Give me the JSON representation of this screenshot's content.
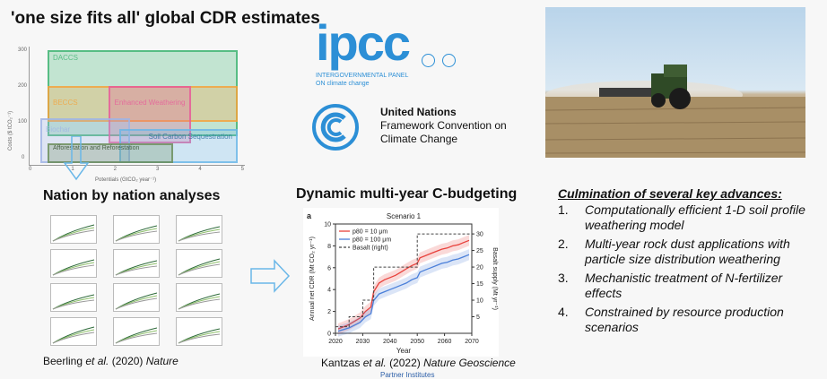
{
  "left": {
    "title": "'one size fits all' global CDR estimates",
    "ylabel": "Costs ($ tCO₂⁻¹)",
    "xlabel": "Potentials (GtCO₂ year⁻¹)",
    "yticks": [
      "300",
      "200",
      "100",
      "0"
    ],
    "xticks": [
      "0",
      "1",
      "2",
      "3",
      "4",
      "5"
    ],
    "boxes": {
      "daccs": "DACCS",
      "beccs": "BECCS",
      "enhanced_weathering": "Enhanced Weathering",
      "biochar": "Biochar",
      "afforestation": "Afforestation and Reforestation",
      "soil_carbon": "Soil Carbon Sequestration"
    },
    "colors": {
      "daccs": "#3cb371",
      "beccs": "#f5a33b",
      "enhanced_weathering": "#e85a9a",
      "biochar": "#9fb4e6",
      "afforestation": "#6b8e5a",
      "soil_carbon": "#6ab7e8"
    },
    "subtitle": "Nation by nation analyses",
    "citation_authors": "Beerling",
    "citation_etal": "et al.",
    "citation_rest": "(2020)",
    "citation_journal": "Nature"
  },
  "logos": {
    "ipcc_word": "ipcc",
    "ipcc_tagline": "INTERGOVERNMENTAL PANEL ON climate change",
    "un_line1": "United Nations",
    "un_line2": "Framework Convention on",
    "un_line3": "Climate Change"
  },
  "middle": {
    "subtitle": "Dynamic multi-year C-budgeting",
    "panel_letter": "a",
    "citation_authors": "Kantzas",
    "citation_etal": "et al.",
    "citation_rest": "(2022)",
    "citation_journal": "Nature Geoscience",
    "footer": "Partner Institutes"
  },
  "chart_data": {
    "type": "line",
    "title": "Scenario 1",
    "xlabel": "Year",
    "ylabel": "Annual net CDR (Mt CO₂ yr⁻¹)",
    "ylabel_right": "Basalt supply (Mt yr⁻¹)",
    "xlim": [
      2020,
      2070
    ],
    "ylim": [
      0,
      10
    ],
    "ylim_right": [
      0,
      33
    ],
    "xticks": [
      2020,
      2030,
      2040,
      2050,
      2060,
      2070
    ],
    "yticks": [
      0,
      2,
      4,
      6,
      8,
      10
    ],
    "yticks_right": [
      5,
      10,
      15,
      20,
      25,
      30
    ],
    "legend": "top-left",
    "series": [
      {
        "name": "p80 = 10 μm",
        "color": "#e8413c",
        "x": [
          2021,
          2025,
          2029,
          2031,
          2033,
          2034,
          2036,
          2038,
          2040,
          2042,
          2044,
          2046,
          2048,
          2050,
          2051,
          2053,
          2055,
          2057,
          2059,
          2061,
          2063,
          2065,
          2067,
          2069
        ],
        "y": [
          0.4,
          0.8,
          1.4,
          2.0,
          2.4,
          3.8,
          4.6,
          4.9,
          5.1,
          5.3,
          5.6,
          5.9,
          6.2,
          6.4,
          6.9,
          7.1,
          7.3,
          7.5,
          7.7,
          7.8,
          8.0,
          8.1,
          8.3,
          8.5
        ]
      },
      {
        "name": "p80 = 100 μm",
        "color": "#4a7fd9",
        "x": [
          2021,
          2025,
          2029,
          2031,
          2033,
          2034,
          2036,
          2038,
          2040,
          2042,
          2044,
          2046,
          2048,
          2050,
          2051,
          2053,
          2055,
          2057,
          2059,
          2061,
          2063,
          2065,
          2067,
          2069
        ],
        "y": [
          0.2,
          0.5,
          1.0,
          1.5,
          1.8,
          3.0,
          3.6,
          3.8,
          4.0,
          4.2,
          4.4,
          4.6,
          4.9,
          5.1,
          5.6,
          5.8,
          6.0,
          6.2,
          6.4,
          6.5,
          6.7,
          6.8,
          7.0,
          7.2
        ]
      },
      {
        "name": "Basalt (right)",
        "color": "#444444",
        "dashed": true,
        "x": [
          2020,
          2025,
          2025,
          2030,
          2030,
          2034,
          2034,
          2050,
          2050,
          2070
        ],
        "y": [
          2,
          2,
          5,
          5,
          10,
          10,
          20,
          20,
          30,
          30
        ]
      }
    ]
  },
  "advances": {
    "title": "Culmination of several key advances:",
    "items": [
      {
        "num": "1.",
        "text": "Computationally efficient 1-D soil profile weathering model"
      },
      {
        "num": "2.",
        "text": "Multi-year rock dust applications with particle size distribution weathering"
      },
      {
        "num": "3.",
        "text": "Mechanistic treatment of N-fertilizer effects"
      },
      {
        "num": "4.",
        "text": "Constrained by resource production scenarios"
      }
    ]
  }
}
